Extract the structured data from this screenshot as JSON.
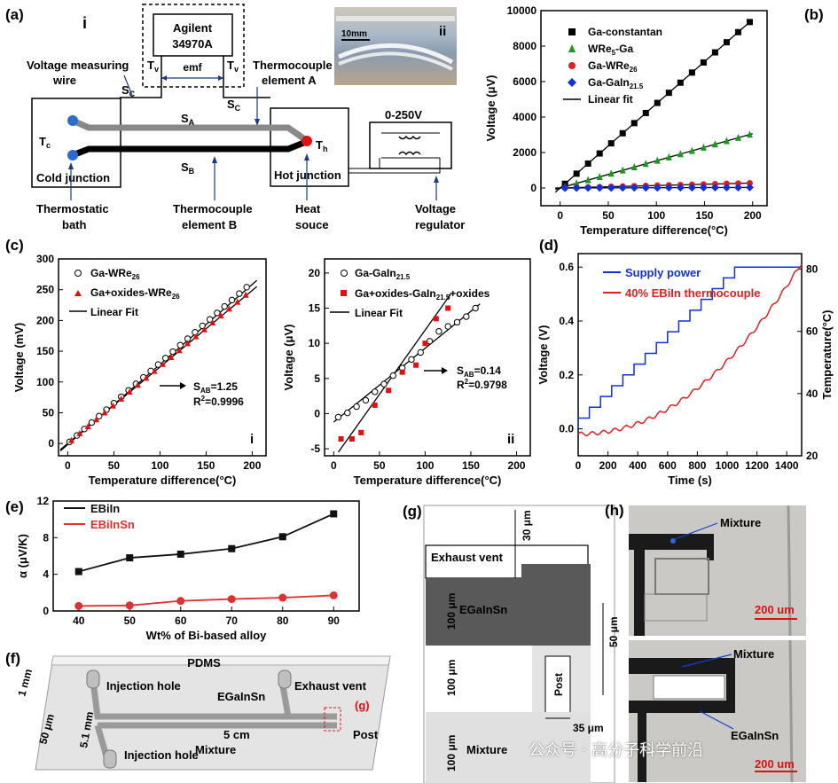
{
  "panel_labels": {
    "a": "(a)",
    "b": "(b)",
    "c": "(c)",
    "d": "(d)",
    "e": "(e)",
    "f": "(f)",
    "g": "(g)",
    "h": "(h)"
  },
  "panel_a": {
    "sub_i": "i",
    "sub_ii": "ii",
    "instrument_line1": "Agilent",
    "instrument_line2": "34970A",
    "tv_left": "T",
    "tv_right": "T",
    "tv_sub": "v",
    "emf": "emf",
    "voltage_wire_1": "Voltage measuring",
    "voltage_wire_2": "wire",
    "tc_elem_a_1": "Thermocouple",
    "tc_elem_a_2": "element A",
    "sc": "S",
    "sc_sub": "C",
    "sa": "S",
    "sa_sub": "A",
    "sb": "S",
    "sb_sub": "B",
    "tc": "T",
    "tc_sub": "c",
    "th": "T",
    "th_sub": "h",
    "cold": "Cold junction",
    "hot": "Hot junction",
    "supply": "0-250V",
    "bath_1": "Thermostatic",
    "bath_2": "bath",
    "elem_b_1": "Thermocouple",
    "elem_b_2": "element B",
    "heat_1": "Heat",
    "heat_2": "souce",
    "reg_1": "Voltage",
    "reg_2": "regulator",
    "scale": "10mm"
  },
  "chart_data": [
    {
      "id": "b",
      "type": "scatter",
      "title": "",
      "xlabel": "Temperature difference(°C)",
      "ylabel": "Voltage (μV)",
      "xlim": [
        -20,
        215
      ],
      "ylim": [
        -1000,
        10000
      ],
      "xticks": [
        0,
        50,
        100,
        150,
        200
      ],
      "yticks": [
        0,
        2000,
        4000,
        6000,
        8000,
        10000
      ],
      "series": [
        {
          "name": "Ga-constantan",
          "color": "#000000",
          "marker": "square",
          "slope": 47.5,
          "intercept": 0
        },
        {
          "name": "WRe5-Ga",
          "color": "#1a9a1a",
          "marker": "triangle",
          "slope": 15.3,
          "intercept": 0
        },
        {
          "name": "Ga-WRe26",
          "color": "#e02020",
          "marker": "circle",
          "slope": 1.4,
          "intercept": 0
        },
        {
          "name": "Ga-GaIn21.5",
          "color": "#1030e0",
          "marker": "diamond",
          "slope": 0.15,
          "intercept": 0
        }
      ],
      "legend": [
        {
          "text": "Ga-constantan",
          "sub": ""
        },
        {
          "text": "WRe",
          "sub": "5",
          "tail": "-Ga"
        },
        {
          "text": "Ga-WRe",
          "sub": "26"
        },
        {
          "text": "Ga-GaIn",
          "sub": "21.5"
        },
        {
          "text": "Linear fit",
          "sub": ""
        }
      ]
    },
    {
      "id": "c-i",
      "type": "scatter",
      "xlabel": "Temperature difference(°C)",
      "ylabel": "Voltage (mV)",
      "xlim": [
        -10,
        215
      ],
      "ylim": [
        -20,
        300
      ],
      "xticks": [
        0,
        50,
        100,
        150,
        200
      ],
      "yticks": [
        0,
        50,
        100,
        150,
        200,
        250,
        300
      ],
      "series": [
        {
          "name": "Ga-WRe26",
          "slope": 1.31,
          "intercept": 0
        },
        {
          "name": "Ga+oxides-WRe26",
          "slope": 1.25,
          "intercept": 0
        }
      ],
      "annotation": {
        "s": "S",
        "s_sub": "AB",
        "s_val": "=1.25",
        "r": "R",
        "r_sup": "2",
        "r_val": "=0.9996"
      },
      "sub": "i"
    },
    {
      "id": "c-ii",
      "type": "scatter",
      "xlabel": "Temperature difference(°C)",
      "ylabel": "Voltage (μV)",
      "xlim": [
        -10,
        215
      ],
      "ylim": [
        -6,
        22
      ],
      "xticks": [
        0,
        50,
        100,
        150,
        200
      ],
      "yticks": [
        -5,
        0,
        5,
        10,
        15,
        20
      ],
      "series": [
        {
          "name": "Ga-GaIn21.5",
          "x": [
            5,
            15,
            25,
            35,
            45,
            55,
            65,
            75,
            85,
            95,
            105,
            115,
            125,
            135,
            145,
            155
          ],
          "values": [
            -0.5,
            0.1,
            1.0,
            1.9,
            3.1,
            4.2,
            5.4,
            6.5,
            7.7,
            8.7,
            10.3,
            11.7,
            12.4,
            13.0,
            13.8,
            15.0
          ]
        },
        {
          "name": "Ga+oxides-GaIn21.5+oxides",
          "x": [
            8,
            20,
            30,
            45,
            60,
            75,
            90,
            100,
            112,
            125
          ],
          "values": [
            -3.6,
            -3.6,
            -2.7,
            1.2,
            3.3,
            5.9,
            6.9,
            10.0,
            13.5,
            15.0
          ]
        }
      ],
      "annotation": {
        "s": "S",
        "s_sub": "AB",
        "s_val": "=0.14",
        "r": "R",
        "r_sup": "2",
        "r_val": "=0.9798"
      },
      "sub": "ii"
    },
    {
      "id": "d",
      "type": "line",
      "xlabel": "Time (s)",
      "ylabel": "Voltage (V)",
      "y2label": "Temperature(°C)",
      "xlim": [
        0,
        1500
      ],
      "ylim": [
        -0.1,
        0.65
      ],
      "y2lim": [
        20,
        85
      ],
      "xticks": [
        0,
        200,
        400,
        600,
        800,
        1000,
        1200,
        1400
      ],
      "yticks": [
        0.0,
        0.2,
        0.4,
        0.6
      ],
      "y2ticks": [
        20,
        40,
        60,
        80
      ],
      "series": [
        {
          "name": "Supply power",
          "color": "#1030e0"
        },
        {
          "name": "40% EBiIn thermocouple",
          "color": "#e02020"
        }
      ]
    },
    {
      "id": "e",
      "type": "line",
      "xlabel": "Wt% of Bi-based alloy",
      "ylabel": "α (μV/K)",
      "x": [
        40,
        50,
        60,
        70,
        80,
        90
      ],
      "xlim": [
        35,
        95
      ],
      "ylim": [
        0,
        12
      ],
      "xticks": [
        40,
        50,
        60,
        70,
        80,
        90
      ],
      "yticks": [
        0,
        4,
        8,
        12
      ],
      "series": [
        {
          "name": "EBiIn",
          "color": "#111111",
          "values": [
            4.3,
            5.8,
            6.2,
            6.8,
            8.1,
            10.6
          ]
        },
        {
          "name": "EBiInSn",
          "color": "#e03030",
          "values": [
            0.55,
            0.6,
            1.1,
            1.3,
            1.45,
            1.7
          ]
        }
      ]
    }
  ],
  "panel_f": {
    "pdms": "PDMS",
    "injection_top": "Injection hole",
    "injection_bottom": "Injection hole",
    "exhaust": "Exhaust vent",
    "egainsn": "EGaInSn",
    "mixture": "Mixture",
    "post": "Post",
    "g": "(g)",
    "dim_1mm": "1 mm",
    "dim_50um": "50 μm",
    "dim_51mm": "5.1 mm",
    "dim_5cm": "5 cm"
  },
  "panel_g": {
    "exhaust": "Exhaust vent",
    "egainsn": "EGaInSn",
    "mixture": "Mixture",
    "post": "Post",
    "d30": "30 μm",
    "d100a": "100 μm",
    "d100b": "100 μm",
    "d100c": "100 μm",
    "d50": "50 μm",
    "d35": "35 μm"
  },
  "panel_h": {
    "mixture_top": "Mixture",
    "mixture_bot": "Mixture",
    "egainsn": "EGaInSn",
    "scale_top": "200 um",
    "scale_bot": "200 um"
  },
  "watermark": "公众号 · 高分子科学前沿"
}
